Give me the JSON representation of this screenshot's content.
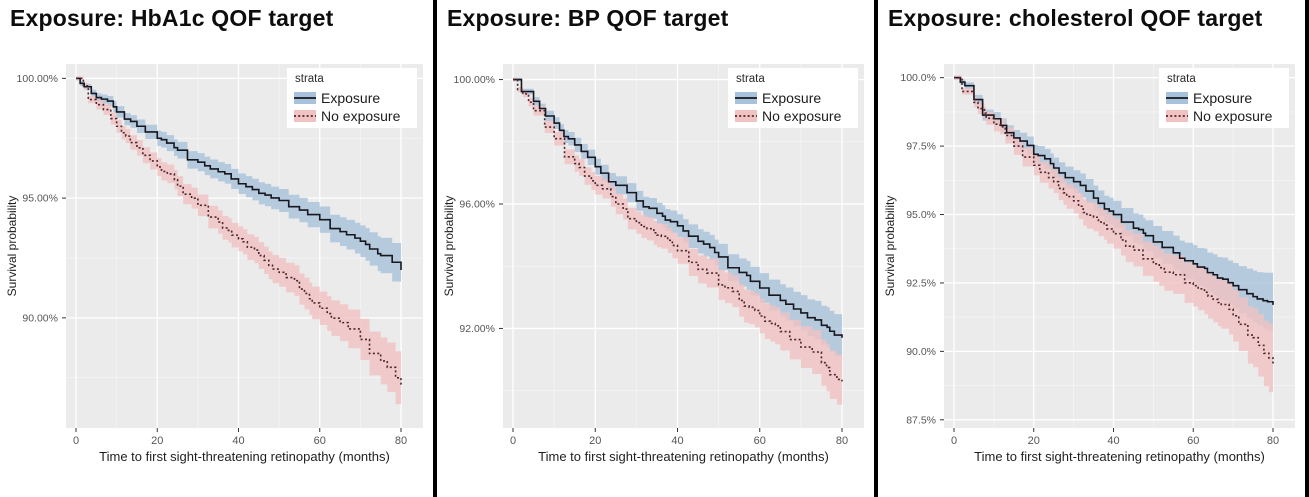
{
  "page": {
    "background": "#ffffff",
    "divider_color": "#000000"
  },
  "shared": {
    "xlabel": "Time to first sight-threatening retinopathy (months)",
    "ylabel": "Survival probability",
    "legend_title": "strata",
    "legend_entries": [
      "Exposure",
      "No exposure"
    ],
    "colors": {
      "panel_bg": "#ebebeb",
      "grid_major": "#ffffff",
      "grid_minor": "#f5f5f5",
      "tick_text": "#565656",
      "axis_title_text": "#1f1f1f",
      "exposure_line": "#16171f",
      "exposure_band": "#a9c2db",
      "no_exposure_line": "#4c272b",
      "no_exposure_band": "#f1c2c2",
      "legend_bg": "#ffffff"
    }
  },
  "chart_data": [
    {
      "type": "line",
      "subtype": "kaplan-meier-step",
      "title": "Exposure: HbA1c QOF target",
      "xlabel": "Time to first sight-threatening retinopathy (months)",
      "ylabel": "Survival probability",
      "legend": {
        "title": "strata",
        "position": "top-right-inside"
      },
      "x_ticks": [
        0,
        20,
        40,
        60,
        80
      ],
      "x_minor_ticks": [
        10,
        30,
        50,
        70
      ],
      "xlim": [
        -3,
        84
      ],
      "y_tick_labels": [
        "100.00%",
        "95.00%",
        "90.00%"
      ],
      "y_tick_values": [
        100,
        95,
        90
      ],
      "y_minor_values": [
        97.5,
        92.5,
        87.5
      ],
      "ylim": [
        85.4,
        100.6
      ],
      "x": [
        0,
        5,
        10,
        15,
        20,
        25,
        30,
        35,
        40,
        45,
        50,
        55,
        60,
        65,
        70,
        75,
        80
      ],
      "series": [
        {
          "name": "Exposure",
          "linestyle": "solid",
          "line_color": "#16171f",
          "band_color": "#a9c2db",
          "values": [
            100,
            99.2,
            98.6,
            98.0,
            97.5,
            97.0,
            96.5,
            96.1,
            95.6,
            95.2,
            94.9,
            94.5,
            94.1,
            93.6,
            93.2,
            92.6,
            92.0
          ],
          "ci_halfwidth": [
            0.08,
            0.18,
            0.24,
            0.28,
            0.32,
            0.35,
            0.38,
            0.4,
            0.43,
            0.46,
            0.48,
            0.51,
            0.55,
            0.6,
            0.66,
            0.74,
            0.85
          ]
        },
        {
          "name": "No exposure",
          "linestyle": "dotted",
          "line_color": "#4c272b",
          "band_color": "#f1c2c2",
          "values": [
            100,
            98.9,
            98.0,
            97.1,
            96.3,
            95.5,
            94.7,
            94.0,
            93.3,
            92.6,
            91.9,
            91.2,
            90.4,
            89.8,
            89.1,
            88.2,
            87.2
          ],
          "ci_halfwidth": [
            0.08,
            0.2,
            0.27,
            0.32,
            0.37,
            0.41,
            0.45,
            0.49,
            0.52,
            0.56,
            0.6,
            0.65,
            0.7,
            0.77,
            0.86,
            0.98,
            1.15
          ]
        }
      ]
    },
    {
      "type": "line",
      "subtype": "kaplan-meier-step",
      "title": "Exposure: BP QOF target",
      "xlabel": "Time to first sight-threatening retinopathy (months)",
      "ylabel": "Survival probability",
      "legend": {
        "title": "strata",
        "position": "top-right-inside"
      },
      "x_ticks": [
        0,
        20,
        40,
        60,
        80
      ],
      "x_minor_ticks": [
        10,
        30,
        50,
        70
      ],
      "xlim": [
        -3,
        84
      ],
      "y_tick_labels": [
        "100.00%",
        "96.00%",
        "92.00%"
      ],
      "y_tick_values": [
        100,
        96,
        92
      ],
      "y_minor_values": [
        98,
        94,
        90
      ],
      "ylim": [
        88.8,
        100.5
      ],
      "x": [
        0,
        5,
        10,
        15,
        20,
        25,
        30,
        35,
        40,
        45,
        50,
        55,
        60,
        65,
        70,
        75,
        80
      ],
      "series": [
        {
          "name": "Exposure",
          "linestyle": "solid",
          "line_color": "#16171f",
          "band_color": "#a9c2db",
          "values": [
            100,
            99.3,
            98.6,
            97.9,
            97.2,
            96.6,
            96.1,
            95.7,
            95.3,
            94.8,
            94.3,
            93.8,
            93.3,
            92.9,
            92.5,
            92.1,
            91.7
          ],
          "ci_halfwidth": [
            0.06,
            0.14,
            0.19,
            0.23,
            0.26,
            0.29,
            0.32,
            0.34,
            0.37,
            0.39,
            0.42,
            0.45,
            0.48,
            0.52,
            0.57,
            0.63,
            0.7
          ]
        },
        {
          "name": "No exposure",
          "linestyle": "dotted",
          "line_color": "#4c272b",
          "band_color": "#f1c2c2",
          "values": [
            100,
            99.0,
            98.1,
            97.3,
            96.6,
            96.0,
            95.4,
            95.0,
            94.5,
            93.9,
            93.4,
            92.9,
            92.4,
            91.9,
            91.4,
            90.9,
            90.3
          ],
          "ci_halfwidth": [
            0.06,
            0.16,
            0.22,
            0.26,
            0.3,
            0.33,
            0.36,
            0.39,
            0.42,
            0.45,
            0.48,
            0.52,
            0.56,
            0.61,
            0.67,
            0.74,
            0.83
          ]
        }
      ]
    },
    {
      "type": "line",
      "subtype": "kaplan-meier-step",
      "title": "Exposure: cholesterol QOF target",
      "xlabel": "Time to first sight-threatening retinopathy (months)",
      "ylabel": "Survival probability",
      "legend": {
        "title": "strata",
        "position": "top-right-inside"
      },
      "x_ticks": [
        0,
        20,
        40,
        60,
        80
      ],
      "x_minor_ticks": [
        10,
        30,
        50,
        70
      ],
      "xlim": [
        -3,
        84
      ],
      "y_tick_labels": [
        "100.0%",
        "97.5%",
        "95.0%",
        "92.5%",
        "90.0%",
        "87.5%"
      ],
      "y_tick_values": [
        100,
        97.5,
        95,
        92.5,
        90,
        87.5
      ],
      "y_minor_values": [
        98.75,
        96.25,
        93.75,
        91.25,
        88.75
      ],
      "ylim": [
        87.2,
        100.5
      ],
      "x": [
        0,
        5,
        10,
        15,
        20,
        25,
        30,
        35,
        40,
        45,
        50,
        55,
        60,
        65,
        70,
        75,
        80
      ],
      "series": [
        {
          "name": "Exposure",
          "linestyle": "solid",
          "line_color": "#16171f",
          "band_color": "#a9c2db",
          "values": [
            100,
            99.2,
            98.5,
            97.8,
            97.2,
            96.7,
            96.2,
            95.6,
            95.0,
            94.5,
            94.0,
            93.6,
            93.2,
            92.8,
            92.4,
            92.0,
            91.7
          ],
          "ci_halfwidth": [
            0.07,
            0.17,
            0.24,
            0.29,
            0.34,
            0.38,
            0.42,
            0.46,
            0.5,
            0.54,
            0.58,
            0.63,
            0.68,
            0.75,
            0.83,
            0.95,
            1.1
          ]
        },
        {
          "name": "No exposure",
          "linestyle": "dotted",
          "line_color": "#4c272b",
          "band_color": "#f1c2c2",
          "values": [
            100,
            99.1,
            98.3,
            97.5,
            96.8,
            96.2,
            95.5,
            94.9,
            94.3,
            93.7,
            93.2,
            92.8,
            92.4,
            91.9,
            91.3,
            90.5,
            89.5
          ],
          "ci_halfwidth": [
            0.07,
            0.19,
            0.26,
            0.32,
            0.37,
            0.42,
            0.46,
            0.51,
            0.55,
            0.6,
            0.65,
            0.7,
            0.76,
            0.84,
            0.94,
            1.08,
            1.3
          ]
        }
      ]
    }
  ]
}
